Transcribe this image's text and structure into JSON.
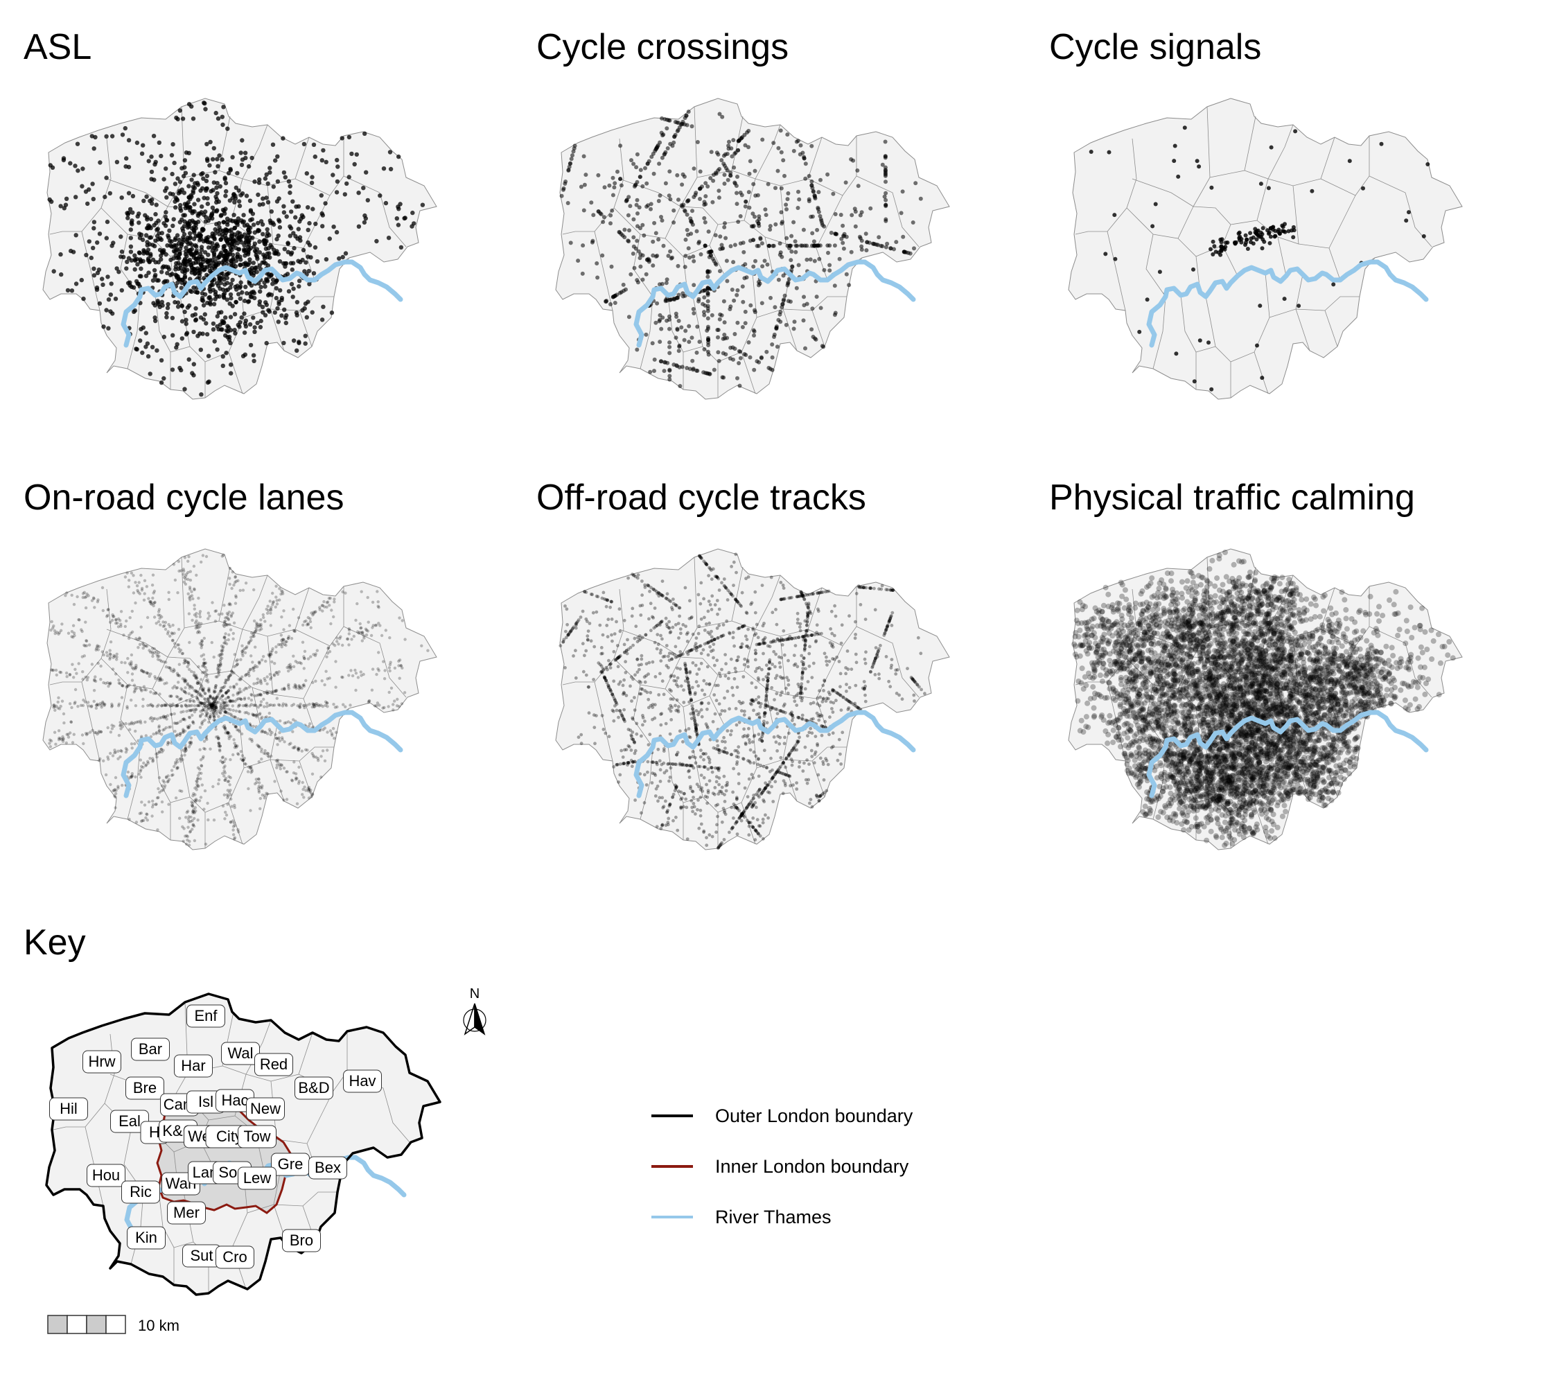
{
  "panels": [
    {
      "id": "asl",
      "title": "ASL",
      "pattern": "dense-centre",
      "count": 1400,
      "alpha": 0.75,
      "radius": 3.2
    },
    {
      "id": "cycle-crossings",
      "title": "Cycle crossings",
      "pattern": "scattered-lines",
      "count": 900,
      "alpha": 0.55,
      "radius": 3.0
    },
    {
      "id": "cycle-signals",
      "title": "Cycle signals",
      "pattern": "sparse-centre",
      "count": 130,
      "alpha": 0.8,
      "radius": 3.0
    },
    {
      "id": "on-road-cycle-lanes",
      "title": "On-road cycle lanes",
      "pattern": "radial-lines",
      "count": 2200,
      "alpha": 0.25,
      "radius": 2.2
    },
    {
      "id": "off-road-cycle-tracks",
      "title": "Off-road cycle tracks",
      "pattern": "tracks",
      "count": 2000,
      "alpha": 0.35,
      "radius": 2.4
    },
    {
      "id": "physical-traffic-calming",
      "title": "Physical traffic calming",
      "pattern": "very-dense",
      "count": 6000,
      "alpha": 0.28,
      "radius": 4.0
    }
  ],
  "key": {
    "title": "Key",
    "north_label": "N",
    "scale_label": "10 km",
    "boroughs": [
      {
        "abbr": "Enf"
      },
      {
        "abbr": "Bar"
      },
      {
        "abbr": "Hrw"
      },
      {
        "abbr": "Har"
      },
      {
        "abbr": "Wal"
      },
      {
        "abbr": "Red"
      },
      {
        "abbr": "Bre"
      },
      {
        "abbr": "B&D"
      },
      {
        "abbr": "Hav"
      },
      {
        "abbr": "Hil"
      },
      {
        "abbr": "Cam"
      },
      {
        "abbr": "Isl"
      },
      {
        "abbr": "Hac"
      },
      {
        "abbr": "New"
      },
      {
        "abbr": "Eal"
      },
      {
        "abbr": "H"
      },
      {
        "abbr": "K&C"
      },
      {
        "abbr": "Wes"
      },
      {
        "abbr": "City"
      },
      {
        "abbr": "Tow"
      },
      {
        "abbr": "Gre"
      },
      {
        "abbr": "Bex"
      },
      {
        "abbr": "Hou"
      },
      {
        "abbr": "Ric"
      },
      {
        "abbr": "Wan"
      },
      {
        "abbr": "Lam"
      },
      {
        "abbr": "Sou"
      },
      {
        "abbr": "Lew"
      },
      {
        "abbr": "Mer"
      },
      {
        "abbr": "Kin"
      },
      {
        "abbr": "Sut"
      },
      {
        "abbr": "Cro"
      },
      {
        "abbr": "Bro"
      }
    ]
  },
  "legend": [
    {
      "label": "Outer London boundary",
      "color": "#000000"
    },
    {
      "label": "Inner London boundary",
      "color": "#8b1a10"
    },
    {
      "label": "River Thames",
      "color": "#95c8ea"
    }
  ],
  "colors": {
    "land": "#f2f2f2",
    "boundary": "#8c8c8c",
    "river": "#95c8ea",
    "inner": "#8b1a10",
    "points": "#000000"
  }
}
